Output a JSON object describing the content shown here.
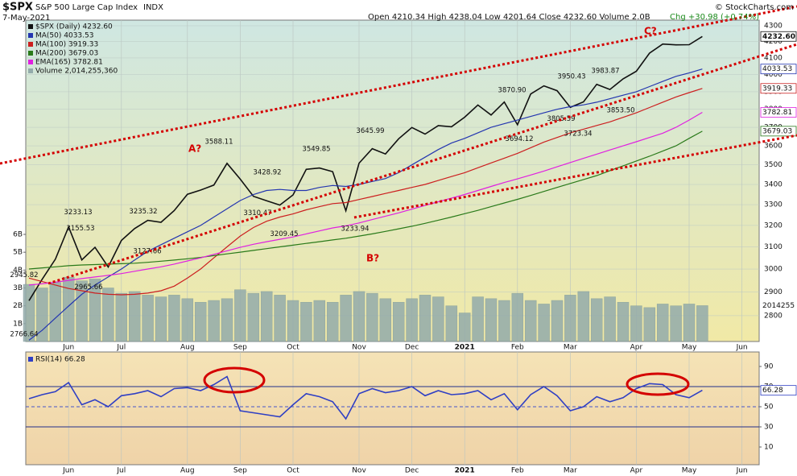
{
  "chart_data": [
    {
      "type": "line",
      "symbol": "$SPX",
      "title": "S&P 500 Large Cap Index",
      "exchange": "INDX",
      "date": "7-May-2021",
      "quote": "Open 4210.34  High 4238.04  Low 4201.64  Close 4232.60  Volume 2.0B",
      "change": "Chg +30.98 (+0.74%)",
      "source": "© StockCharts.com",
      "log": true,
      "grid": true,
      "ylim": [
        2695,
        4336
      ],
      "yticks": [
        2800,
        2900,
        3000,
        3100,
        3200,
        3300,
        3400,
        3500,
        3600,
        3700,
        3800,
        3900,
        4000,
        4100,
        4200,
        4300
      ],
      "y2lim": [
        0,
        18
      ],
      "y2ticks": [
        {
          "value": 1,
          "label": "1B"
        },
        {
          "value": 2,
          "label": "2B"
        },
        {
          "value": 3,
          "label": "3B"
        },
        {
          "value": 4,
          "label": "4B"
        },
        {
          "value": 5,
          "label": "5B"
        },
        {
          "value": 6,
          "label": "6B"
        }
      ],
      "categories": [
        null,
        null,
        null,
        "Jun",
        null,
        null,
        null,
        "Jul",
        null,
        null,
        null,
        null,
        "Aug",
        null,
        null,
        null,
        "Sep",
        null,
        null,
        null,
        "Oct",
        null,
        null,
        null,
        null,
        "Nov",
        null,
        null,
        null,
        "Dec",
        null,
        null,
        null,
        "2021",
        null,
        null,
        null,
        "Feb",
        null,
        null,
        null,
        "Mar",
        null,
        null,
        null,
        null,
        "Apr",
        null,
        null,
        null,
        "May",
        null,
        null,
        null,
        "Jun",
        null
      ],
      "series": [
        {
          "name": "$SPX (Daily) 4232.60",
          "color": "#111111",
          "end_label": "4232.60",
          "values": [
            2863,
            2955,
            3044,
            3193,
            3041,
            3098,
            3009,
            3130,
            3185,
            3224,
            3215,
            3271,
            3351,
            3372,
            3397,
            3508,
            3427,
            3341,
            3319,
            3298,
            3348,
            3477,
            3484,
            3465,
            3270,
            3509,
            3585,
            3557,
            3638,
            3699,
            3663,
            3709,
            3703,
            3756,
            3824,
            3768,
            3841,
            3714,
            3887,
            3934,
            3906,
            3811,
            3842,
            3943,
            3913,
            3975,
            4020,
            4129,
            4185,
            4180,
            4181,
            4232.6,
            null,
            null,
            null,
            null
          ]
        },
        {
          "name": "MA(50) 4033.53",
          "color": "#2436b0",
          "end_label": "4033.53",
          "values": [
            2700,
            2740,
            2790,
            2840,
            2890,
            2930,
            2965,
            3000,
            3040,
            3080,
            3110,
            3140,
            3170,
            3200,
            3240,
            3280,
            3320,
            3350,
            3370,
            3375,
            3370,
            3370,
            3385,
            3395,
            3390,
            3400,
            3415,
            3430,
            3460,
            3500,
            3540,
            3580,
            3615,
            3640,
            3670,
            3700,
            3720,
            3740,
            3760,
            3780,
            3800,
            3815,
            3825,
            3840,
            3860,
            3880,
            3900,
            3930,
            3960,
            3990,
            4010,
            4033.53,
            null,
            null,
            null,
            null
          ]
        },
        {
          "name": "MA(100) 3919.33",
          "color": "#cc1f1f",
          "end_label": "3919.33",
          "values": [
            2960,
            2945,
            2930,
            2915,
            2905,
            2895,
            2890,
            2888,
            2890,
            2895,
            2905,
            2925,
            2960,
            3000,
            3050,
            3100,
            3150,
            3190,
            3220,
            3240,
            3255,
            3275,
            3290,
            3305,
            3310,
            3325,
            3340,
            3355,
            3370,
            3385,
            3400,
            3420,
            3440,
            3460,
            3485,
            3510,
            3535,
            3560,
            3590,
            3620,
            3645,
            3670,
            3690,
            3710,
            3730,
            3755,
            3780,
            3810,
            3840,
            3870,
            3895,
            3919.33,
            null,
            null,
            null,
            null
          ]
        },
        {
          "name": "MA(200) 3679.03",
          "color": "#2a7a1a",
          "end_label": "3679.03",
          "values": [
            3000,
            3005,
            3010,
            3015,
            3018,
            3020,
            3022,
            3024,
            3026,
            3030,
            3035,
            3040,
            3046,
            3052,
            3060,
            3068,
            3076,
            3084,
            3092,
            3100,
            3108,
            3116,
            3124,
            3132,
            3140,
            3150,
            3160,
            3172,
            3184,
            3196,
            3210,
            3225,
            3240,
            3256,
            3272,
            3290,
            3308,
            3326,
            3345,
            3365,
            3385,
            3405,
            3425,
            3445,
            3470,
            3495,
            3520,
            3545,
            3572,
            3600,
            3640,
            3679.03,
            null,
            null,
            null,
            null
          ]
        },
        {
          "name": "EMA(165) 3782.81",
          "color": "#e020e0",
          "end_label": "3782.81",
          "values": [
            2930,
            2935,
            2942,
            2950,
            2958,
            2965,
            2972,
            2980,
            2990,
            3000,
            3010,
            3022,
            3036,
            3050,
            3066,
            3082,
            3098,
            3112,
            3124,
            3135,
            3146,
            3160,
            3174,
            3188,
            3198,
            3212,
            3228,
            3244,
            3260,
            3278,
            3296,
            3314,
            3332,
            3350,
            3370,
            3390,
            3410,
            3428,
            3448,
            3468,
            3490,
            3512,
            3534,
            3556,
            3578,
            3600,
            3622,
            3645,
            3668,
            3700,
            3740,
            3782.81,
            null,
            null,
            null,
            null
          ]
        },
        {
          "name": "Volume 2,014,255,360",
          "color": "#93abab",
          "type": "bar",
          "axis": "y2",
          "end_label": "2014255",
          "values": [
            3.2,
            3.0,
            3.3,
            3.6,
            3.4,
            3.5,
            3.0,
            2.7,
            2.8,
            2.6,
            2.5,
            2.6,
            2.4,
            2.2,
            2.3,
            2.4,
            2.9,
            2.7,
            2.8,
            2.6,
            2.3,
            2.2,
            2.3,
            2.2,
            2.6,
            2.8,
            2.7,
            2.4,
            2.2,
            2.4,
            2.6,
            2.5,
            2.0,
            1.6,
            2.5,
            2.4,
            2.3,
            2.7,
            2.3,
            2.1,
            2.3,
            2.6,
            2.8,
            2.4,
            2.5,
            2.2,
            2.0,
            1.9,
            2.1,
            2.0,
            2.1,
            2.01,
            null,
            null,
            null,
            null
          ]
        }
      ],
      "annotations": [
        {
          "label": "2945.82",
          "value": 2945.82
        },
        {
          "label": "2766.64",
          "value": 2766.64
        },
        {
          "label": "3233.13",
          "value": 3233.13
        },
        {
          "label": "3155.53",
          "value": 3155.53
        },
        {
          "label": "2965.66",
          "value": 2965.66
        },
        {
          "label": "3235.32",
          "value": 3235.32
        },
        {
          "label": "3127.66",
          "value": 3127.66
        },
        {
          "label": "3588.11",
          "value": 3588.11
        },
        {
          "label": "3428.92",
          "value": 3428.92
        },
        {
          "label": "3310.47",
          "value": 3310.47
        },
        {
          "label": "3549.85",
          "value": 3549.85
        },
        {
          "label": "3209.45",
          "value": 3209.45
        },
        {
          "label": "3233.94",
          "value": 3233.94
        },
        {
          "label": "3645.99",
          "value": 3645.99
        },
        {
          "label": "3870.90",
          "value": 3870.9
        },
        {
          "label": "3694.12",
          "value": 3694.12
        },
        {
          "label": "3950.43",
          "value": 3950.43
        },
        {
          "label": "3805.59",
          "value": 3805.59
        },
        {
          "label": "3723.34",
          "value": 3723.34
        },
        {
          "label": "3983.87",
          "value": 3983.87
        },
        {
          "label": "3853.50",
          "value": 3853.5
        }
      ],
      "wave_labels": [
        "A?",
        "B?",
        "C?"
      ]
    },
    {
      "type": "line",
      "title": "RSI(14) 66.28",
      "ylim": [
        -7.6,
        104.4
      ],
      "yticks": [
        10,
        30,
        50,
        70,
        90
      ],
      "levels": [
        70,
        50,
        30
      ],
      "categories": [
        null,
        null,
        null,
        "Jun",
        null,
        null,
        null,
        "Jul",
        null,
        null,
        null,
        null,
        "Aug",
        null,
        null,
        null,
        "Sep",
        null,
        null,
        null,
        "Oct",
        null,
        null,
        null,
        null,
        "Nov",
        null,
        null,
        null,
        "Dec",
        null,
        null,
        null,
        "2021",
        null,
        null,
        null,
        "Feb",
        null,
        null,
        null,
        "Mar",
        null,
        null,
        null,
        null,
        "Apr",
        null,
        null,
        null,
        "May",
        null,
        null,
        null,
        "Jun",
        null
      ],
      "series": [
        {
          "name": "RSI(14)",
          "color": "#2f3fc4",
          "end_label": "66.28",
          "values": [
            58,
            62,
            65,
            74,
            52,
            57,
            50,
            61,
            63,
            66,
            60,
            68,
            69,
            66,
            72,
            80,
            46,
            44,
            42,
            40,
            52,
            63,
            60,
            55,
            38,
            63,
            68,
            64,
            66,
            70,
            61,
            66,
            62,
            63,
            66,
            57,
            63,
            47,
            62,
            70,
            61,
            46,
            50,
            60,
            55,
            59,
            68,
            73,
            72,
            62,
            59,
            66.28,
            null,
            null,
            null,
            null
          ]
        }
      ]
    }
  ]
}
